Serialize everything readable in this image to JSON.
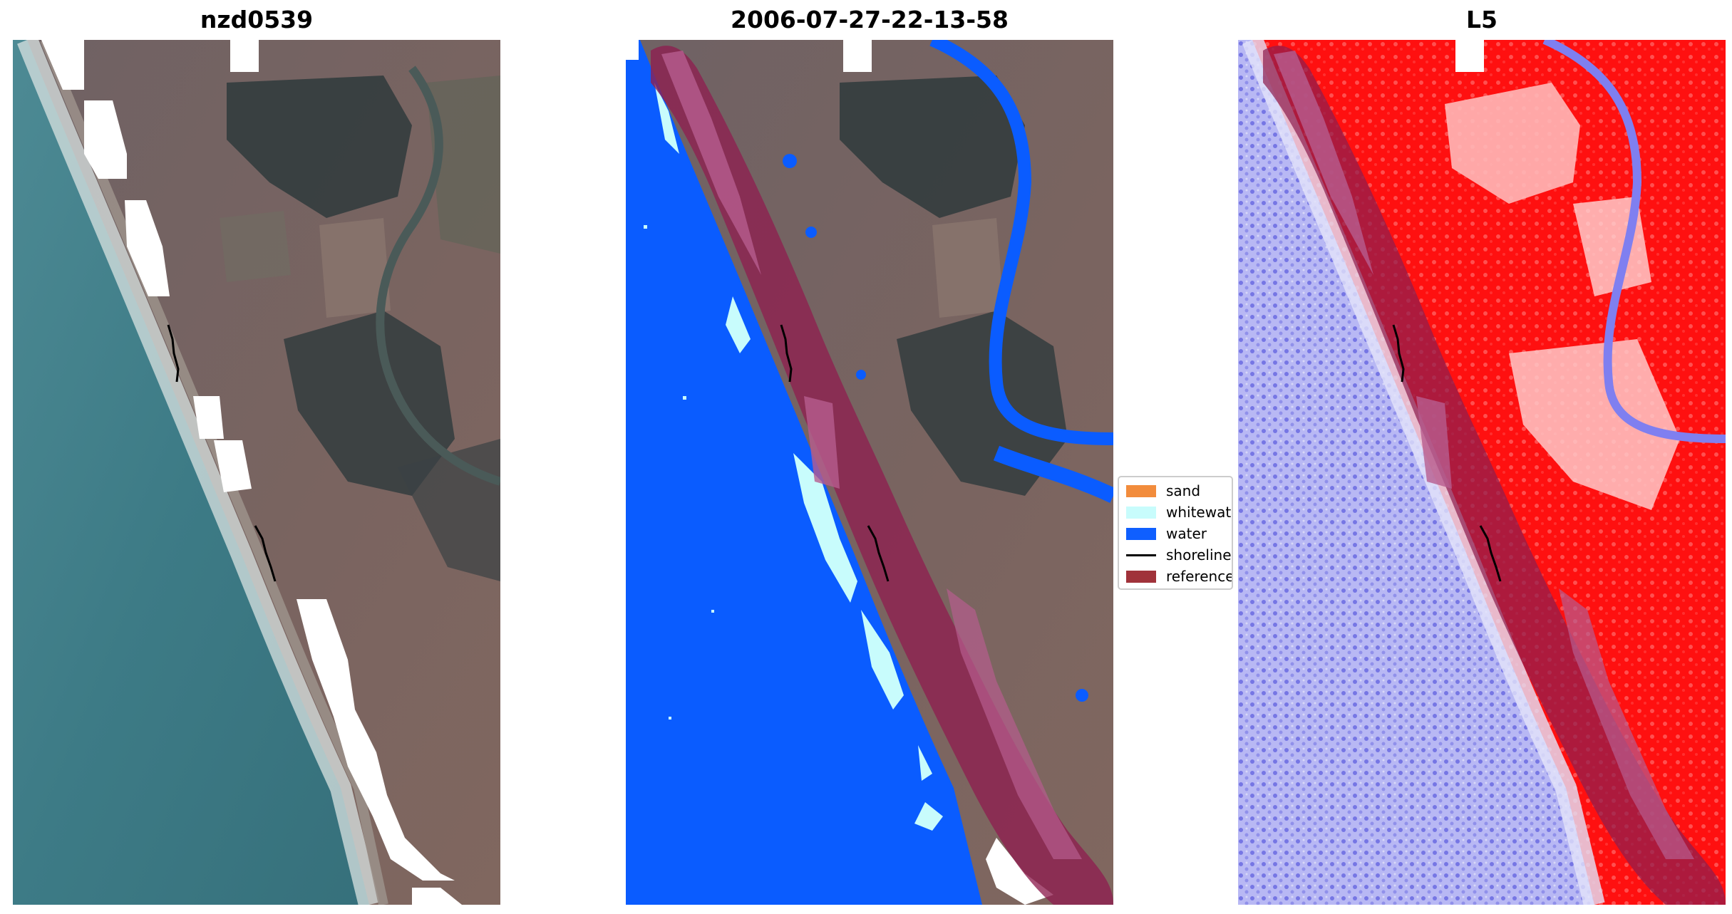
{
  "panels": [
    {
      "title": "nzd0539"
    },
    {
      "title": "2006-07-27-22-13-58"
    },
    {
      "title": "L5"
    }
  ],
  "legend": {
    "items": [
      {
        "label": "sand",
        "color": "#f28c3c",
        "kind": "patch"
      },
      {
        "label": "whitewater",
        "color": "#c8fcfc",
        "kind": "patch"
      },
      {
        "label": "water",
        "color": "#0f5fff",
        "kind": "patch"
      },
      {
        "label": "shoreline",
        "color": "#000000",
        "kind": "line"
      },
      {
        "label": "reference shoreline buffer",
        "color": "#a0323a",
        "kind": "patch"
      }
    ]
  },
  "colors": {
    "ocean": "#3f7f88",
    "land": "#7e6a68",
    "forest": "#2f3a3c",
    "water_class": "#0a5cff",
    "whitewater": "#c8fcfc",
    "buffer": "#8e1f4f",
    "index_positive": "#ff0000",
    "index_negative": "#4a4ae0"
  }
}
